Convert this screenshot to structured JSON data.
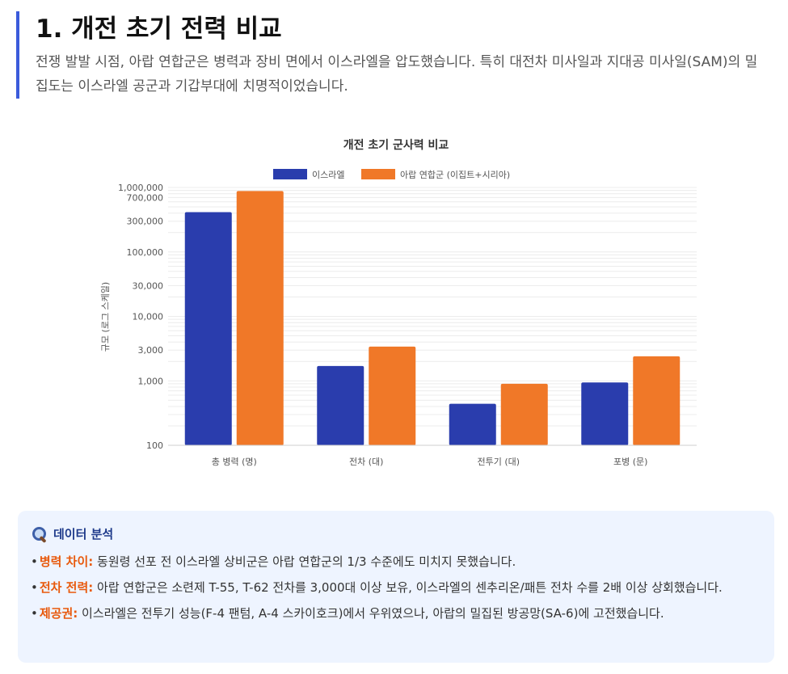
{
  "section": {
    "title": "1. 개전 초기 전력 비교",
    "desc": "전쟁 발발 시점, 아랍 연합군은 병력과 장비 면에서 이스라엘을 압도했습니다. 특히 대전차 미사일과 지대공 미사일(SAM)의 밀집도는 이스라엘 공군과 기갑부대에 치명적이었습니다."
  },
  "colors": {
    "israel": "#2a3dad",
    "arab": "#f07828",
    "accent": "#3b5bdb",
    "key": "#e8590c"
  },
  "chart_data": {
    "type": "bar",
    "scale": "log",
    "title": "개전 초기 군사력 비교",
    "ylabel": "규모 (로그 스케일)",
    "xlabel": "",
    "ylim": [
      100,
      1000000
    ],
    "legend_position": "top",
    "categories": [
      "총 병력 (명)",
      "전차 (대)",
      "전투기 (대)",
      "포병 (문)"
    ],
    "series": [
      {
        "name": "이스라엘",
        "values": [
          415000,
          1700,
          440,
          945
        ]
      },
      {
        "name": "아랍 연합군 (이집트+시리아)",
        "values": [
          880000,
          3400,
          900,
          2400
        ]
      }
    ],
    "y_ticks": [
      {
        "value": 100,
        "label": "100"
      },
      {
        "value": 1000,
        "label": "1,000"
      },
      {
        "value": 3000,
        "label": "3,000"
      },
      {
        "value": 10000,
        "label": "10,000"
      },
      {
        "value": 30000,
        "label": "30,000"
      },
      {
        "value": 100000,
        "label": "100,000"
      },
      {
        "value": 300000,
        "label": "300,000"
      },
      {
        "value": 700000,
        "label": "700,000"
      },
      {
        "value": 1000000,
        "label": "1,000,000"
      }
    ]
  },
  "analysis": {
    "title": "데이터 분석",
    "items": [
      {
        "key": "병력 차이:",
        "text": " 동원령 선포 전 이스라엘 상비군은 아랍 연합군의 1/3 수준에도 미치지 못했습니다."
      },
      {
        "key": "전차 전력:",
        "text": " 아랍 연합군은 소련제 T-55, T-62 전차를 3,000대 이상 보유, 이스라엘의 센추리온/패튼 전차 수를 2배 이상 상회했습니다."
      },
      {
        "key": "제공권:",
        "text": " 이스라엘은 전투기 성능(F-4 팬텀, A-4 스카이호크)에서 우위였으나, 아랍의 밀집된 방공망(SA-6)에 고전했습니다."
      }
    ]
  }
}
